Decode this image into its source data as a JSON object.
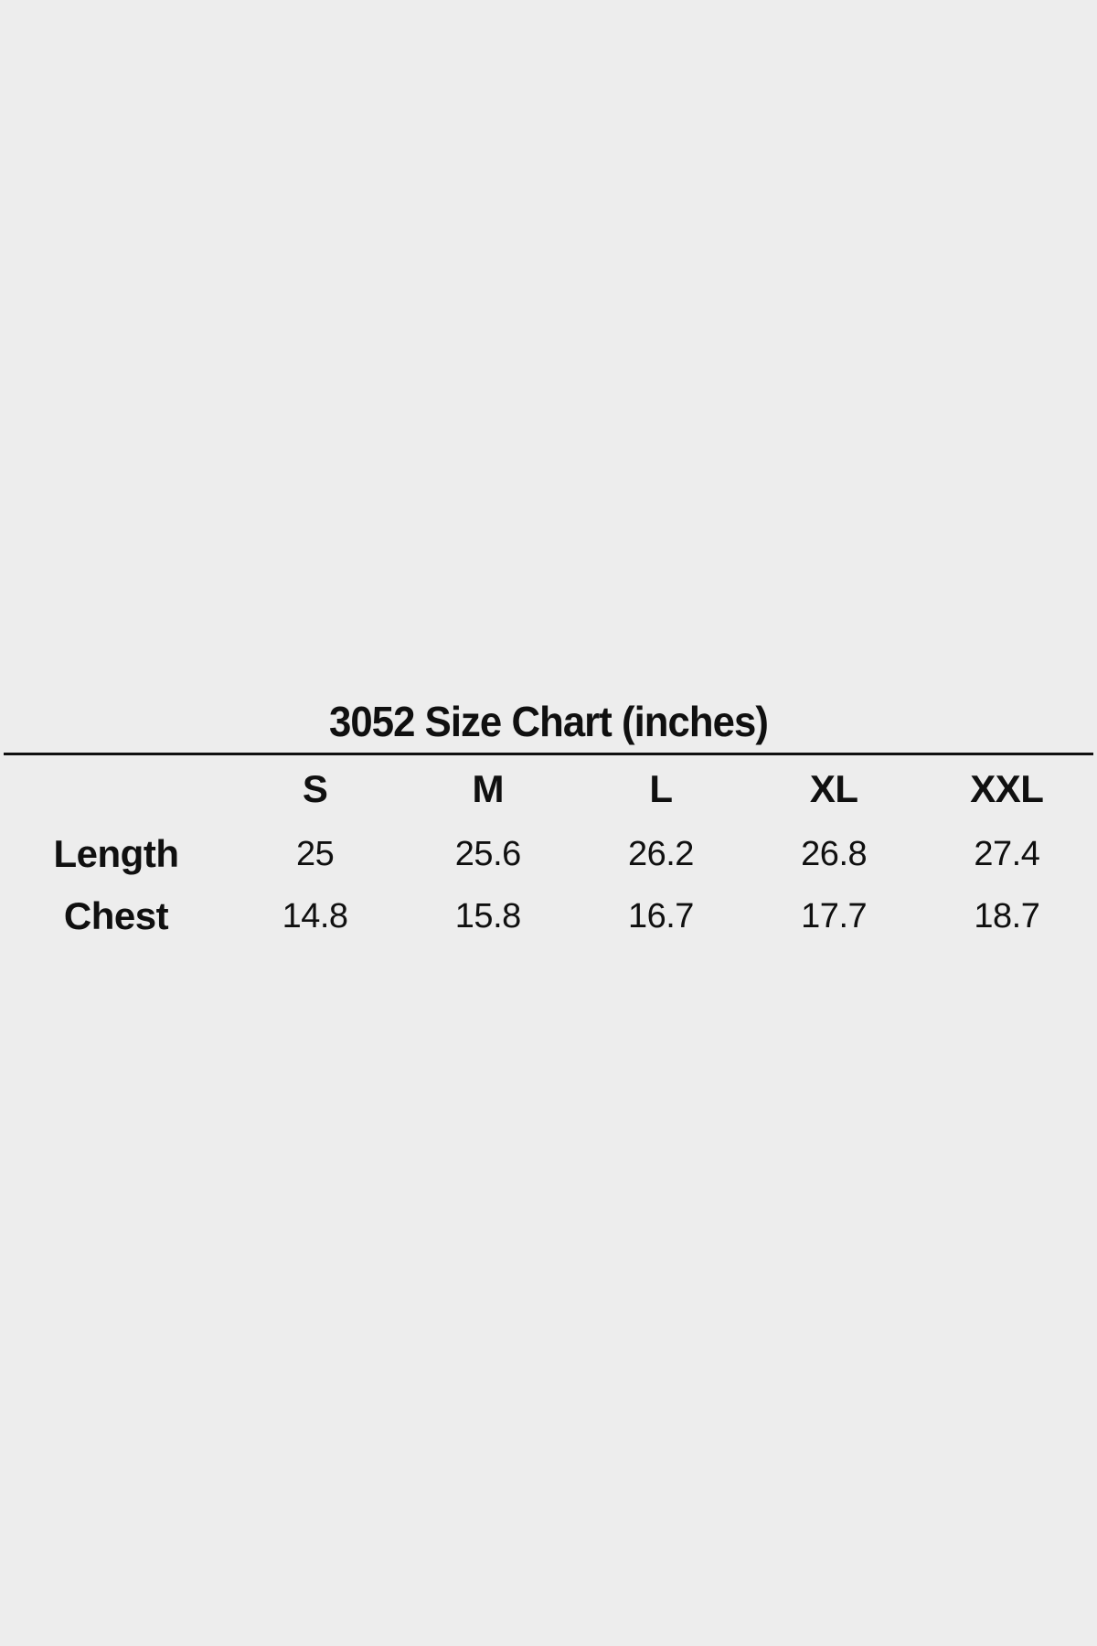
{
  "page": {
    "background_color": "#ededed",
    "text_color": "#101010"
  },
  "chart_data": {
    "type": "table",
    "title": "3052 Size Chart (inches)",
    "units": "inches",
    "columns": [
      "S",
      "M",
      "L",
      "XL",
      "XXL"
    ],
    "rows": [
      {
        "label": "Length",
        "values": [
          25,
          25.6,
          26.2,
          26.8,
          27.4
        ]
      },
      {
        "label": "Chest",
        "values": [
          14.8,
          15.8,
          16.7,
          17.7,
          18.7
        ]
      }
    ],
    "layout": {
      "header_bold": true,
      "grid": "single horizontal rule under title",
      "alignment": "center"
    }
  }
}
